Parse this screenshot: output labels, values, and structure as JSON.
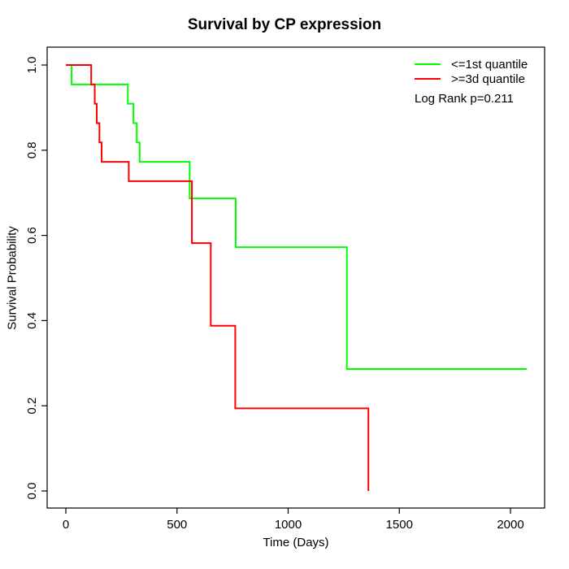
{
  "title": "Survival by CP expression",
  "xlabel": "Time (Days)",
  "ylabel": "Survival Probability",
  "legend": {
    "entries": [
      {
        "label": "<=1st quantile",
        "color": "#00ff00"
      },
      {
        "label": ">=3d quantile",
        "color": "#ff0000"
      }
    ],
    "annotation": "Log Rank p=0.211"
  },
  "chart_data": {
    "type": "line",
    "subtype": "kaplan-meier-step",
    "title": "Survival by CP expression",
    "xlabel": "Time (Days)",
    "ylabel": "Survival Probability",
    "xlim": [
      0,
      2074
    ],
    "ylim": [
      0.0,
      1.0
    ],
    "xticks": [
      0,
      500,
      1000,
      1500,
      2000
    ],
    "xtick_labels": [
      "0",
      "500",
      "1000",
      "1500",
      "2000"
    ],
    "yticks": [
      0.0,
      0.2,
      0.4,
      0.6,
      0.8,
      1.0
    ],
    "ytick_labels": [
      "0.0",
      "0.2",
      "0.4",
      "0.6",
      "0.8",
      "1.0"
    ],
    "grid": false,
    "legend_position": "top-right",
    "annotation": "Log Rank p=0.211",
    "log_rank_p": "0.211",
    "series": [
      {
        "name": "<=1st quantile",
        "color": "#00ff00",
        "start": [
          0,
          1.0
        ],
        "steps": [
          [
            26,
            0.9545
          ],
          [
            279,
            0.9091
          ],
          [
            304,
            0.8636
          ],
          [
            319,
            0.8182
          ],
          [
            332,
            0.7727
          ],
          [
            557,
            0.6868
          ],
          [
            764,
            0.5723
          ],
          [
            1264,
            0.2862
          ]
        ],
        "end_time": 2074,
        "ends_at_zero": false
      },
      {
        "name": ">=3d quantile",
        "color": "#ff0000",
        "start": [
          0,
          1.0
        ],
        "steps": [
          [
            114,
            0.9545
          ],
          [
            130,
            0.9091
          ],
          [
            139,
            0.8636
          ],
          [
            151,
            0.8182
          ],
          [
            161,
            0.7727
          ],
          [
            283,
            0.7273
          ],
          [
            567,
            0.5818
          ],
          [
            652,
            0.3879
          ],
          [
            762,
            0.1939
          ],
          [
            1361,
            0.0
          ]
        ],
        "end_time": 1361,
        "ends_at_zero": true
      }
    ]
  }
}
